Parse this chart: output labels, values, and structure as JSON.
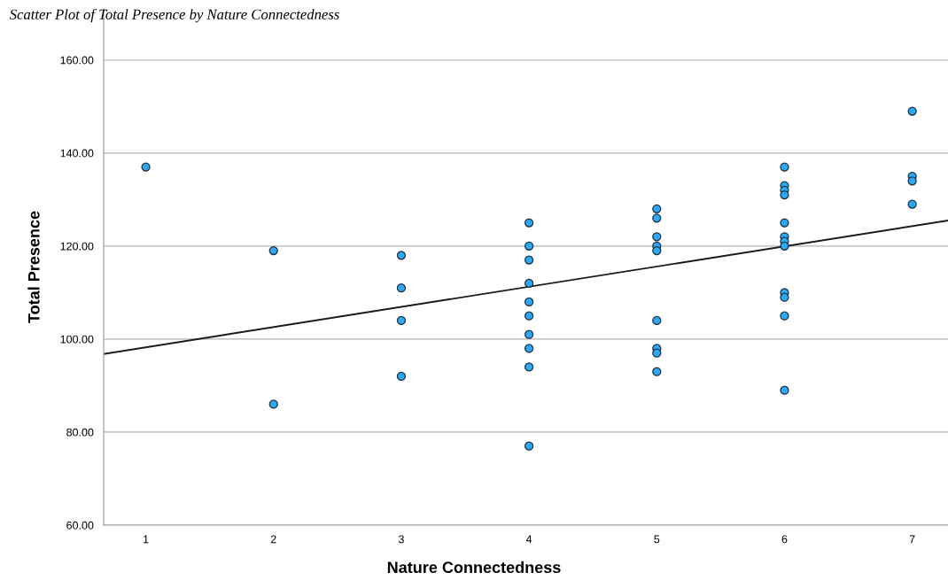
{
  "chart_data": {
    "type": "scatter",
    "title": "Scatter Plot of Total Presence by Nature Connectedness",
    "xlabel": "Nature Connectedness",
    "ylabel": "Total Presence",
    "xlim": [
      0.67,
      7.28
    ],
    "xticks": [
      1,
      2,
      3,
      4,
      5,
      6,
      7
    ],
    "ylim": [
      60,
      171
    ],
    "yticks": [
      {
        "value": 60,
        "label": "60.00"
      },
      {
        "value": 80,
        "label": "80.00"
      },
      {
        "value": 100,
        "label": "100.00"
      },
      {
        "value": 120,
        "label": "120.00"
      },
      {
        "value": 140,
        "label": "140.00"
      },
      {
        "value": 160,
        "label": "160.00"
      }
    ],
    "grid": "y",
    "series": [
      {
        "marker": "circle",
        "color": "#2ea8f2",
        "x": [
          1,
          2,
          2,
          3,
          3,
          3,
          3,
          4,
          4,
          4,
          4,
          4,
          4,
          4,
          4,
          4,
          4,
          5,
          5,
          5,
          5,
          5,
          5,
          5,
          5,
          5,
          6,
          6,
          6,
          6,
          6,
          6,
          6,
          6,
          6,
          6,
          6,
          6,
          7,
          7,
          7,
          7
        ],
        "values": [
          137,
          119,
          86,
          118,
          111,
          104,
          92,
          125,
          120,
          117,
          112,
          108,
          105,
          101,
          98,
          94,
          77,
          128,
          126,
          122,
          120,
          119,
          104,
          98,
          97,
          93,
          137,
          133,
          132,
          131,
          125,
          122,
          121,
          120,
          110,
          109,
          105,
          89,
          149,
          135,
          134,
          129
        ]
      },
      {
        "type": "line",
        "color": "#1a1a1a",
        "line_style": "solid",
        "x": [
          0.67,
          7.28
        ],
        "values": [
          96.8,
          125.5
        ]
      }
    ]
  }
}
